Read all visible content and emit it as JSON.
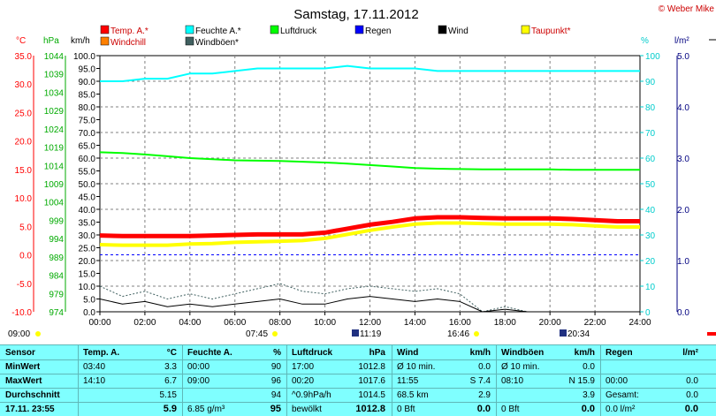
{
  "header": {
    "title": "Samstag, 17.11.2012",
    "copyright": "© Weber Mike"
  },
  "axes": {
    "temp_unit": "°C",
    "pressure_unit": "hPa",
    "wind_unit": "km/h",
    "humidity_unit": "%",
    "rain_unit": "l/m²",
    "temp_ticks": [
      "35.0",
      "30.0",
      "25.0",
      "20.0",
      "15.0",
      "10.0",
      "5.0",
      "0.0",
      "-5.0",
      "-10.0"
    ],
    "pressure_ticks": [
      "1044",
      "1039",
      "1034",
      "1029",
      "1024",
      "1019",
      "1014",
      "1009",
      "1004",
      "999",
      "994",
      "989",
      "984",
      "979",
      "974"
    ],
    "wind_ticks": [
      "100.0",
      "95.0",
      "90.0",
      "85.0",
      "80.0",
      "75.0",
      "70.0",
      "65.0",
      "60.0",
      "55.0",
      "50.0",
      "45.0",
      "40.0",
      "35.0",
      "30.0",
      "25.0",
      "20.0",
      "15.0",
      "10.0",
      "5.0",
      "0.0"
    ],
    "humidity_ticks": [
      "100",
      "90",
      "80",
      "70",
      "60",
      "50",
      "40",
      "30",
      "20",
      "10",
      "0"
    ],
    "rain_ticks": [
      "5.0",
      "4.0",
      "3.0",
      "2.0",
      "1.0",
      "0.0"
    ],
    "time_ticks": [
      "00:00",
      "02:00",
      "04:00",
      "06:00",
      "08:00",
      "10:00",
      "12:00",
      "14:00",
      "16:00",
      "18:00",
      "20:00",
      "22:00",
      "24:00"
    ]
  },
  "legend": [
    {
      "label": "Temp. A.*",
      "color": "#ff0000"
    },
    {
      "label": "Feuchte A.*",
      "color": "#00ffff"
    },
    {
      "label": "Luftdruck",
      "color": "#00ff00"
    },
    {
      "label": "Regen",
      "color": "#0000ff"
    },
    {
      "label": "Wind",
      "color": "#000000"
    },
    {
      "label": "Taupunkt*",
      "color": "#ffff00"
    },
    {
      "label": "Windchill",
      "color": "#ff8000"
    },
    {
      "label": "Windböen*",
      "color": "#406060"
    }
  ],
  "sun_moon": {
    "left_label": "09:00",
    "sunrise": "07:45",
    "moon1": "11:19",
    "sunset": "16:46",
    "moon2": "20:34"
  },
  "chart_data": {
    "type": "line",
    "title": "Samstag, 17.11.2012",
    "x_range": [
      "00:00",
      "24:00"
    ],
    "x_hours": [
      0,
      1,
      2,
      3,
      4,
      5,
      6,
      7,
      8,
      9,
      10,
      11,
      12,
      13,
      14,
      15,
      16,
      17,
      18,
      19,
      20,
      21,
      22,
      23,
      24
    ],
    "series": [
      {
        "name": "Temp. A.*",
        "axis": "temp",
        "color": "#ff0000",
        "values": [
          3.4,
          3.3,
          3.3,
          3.3,
          3.3,
          3.4,
          3.5,
          3.6,
          3.6,
          3.6,
          3.9,
          4.6,
          5.3,
          5.8,
          6.4,
          6.6,
          6.6,
          6.5,
          6.4,
          6.4,
          6.4,
          6.3,
          6.1,
          5.9,
          5.9
        ]
      },
      {
        "name": "Taupunkt*",
        "axis": "temp",
        "color": "#ffff00",
        "values": [
          1.8,
          1.7,
          1.7,
          1.7,
          1.9,
          2.0,
          2.2,
          2.3,
          2.4,
          2.5,
          2.9,
          3.6,
          4.3,
          4.9,
          5.4,
          5.6,
          5.6,
          5.5,
          5.4,
          5.4,
          5.4,
          5.3,
          5.1,
          4.9,
          4.9
        ]
      },
      {
        "name": "Feuchte A.*",
        "axis": "humidity",
        "color": "#00ffff",
        "values": [
          90,
          90,
          91,
          91,
          93,
          93,
          94,
          95,
          95,
          95,
          95,
          96,
          95,
          95,
          95,
          94,
          94,
          94,
          94,
          94,
          94,
          94,
          94,
          94,
          94
        ]
      },
      {
        "name": "Luftdruck",
        "axis": "pressure",
        "color": "#00ff00",
        "values": [
          1017.6,
          1017.4,
          1017.0,
          1016.5,
          1016.0,
          1015.7,
          1015.4,
          1015.3,
          1015.2,
          1015.0,
          1014.8,
          1014.5,
          1014.1,
          1013.7,
          1013.3,
          1013.1,
          1013.0,
          1012.9,
          1012.9,
          1012.9,
          1012.9,
          1012.8,
          1012.8,
          1012.8,
          1012.8
        ]
      },
      {
        "name": "Wind",
        "axis": "wind",
        "color": "#000000",
        "values": [
          5,
          3,
          4,
          2,
          3,
          2,
          3,
          4,
          5,
          3,
          3,
          5,
          6,
          5,
          4,
          5,
          4,
          0,
          1,
          0,
          0,
          0,
          0,
          0,
          0
        ]
      },
      {
        "name": "Windböen*",
        "axis": "wind",
        "color": "#406060",
        "values": [
          10,
          6,
          8,
          5,
          7,
          5,
          7,
          9,
          11,
          8,
          7,
          9,
          10,
          9,
          8,
          9,
          7,
          0,
          2,
          0,
          0,
          0,
          0,
          0,
          0
        ]
      }
    ],
    "ranges": {
      "temp": [
        -10,
        35
      ],
      "pressure": [
        974,
        1044
      ],
      "wind": [
        0,
        100
      ],
      "humidity": [
        0,
        100
      ],
      "rain": [
        0,
        5
      ]
    },
    "reference_line_temp": 0.0,
    "grid": true
  },
  "stats": {
    "headers": {
      "sensor": "Sensor",
      "temp": "Temp. A.",
      "temp_unit": "°C",
      "hum": "Feuchte A.",
      "hum_unit": "%",
      "press": "Luftdruck",
      "press_unit": "hPa",
      "wind": "Wind",
      "wind_unit": "km/h",
      "gust": "Windböen",
      "gust_unit": "km/h",
      "rain": "Regen",
      "rain_unit": "l/m²"
    },
    "rows": [
      {
        "label": "MinWert",
        "temp_time": "03:40",
        "temp_val": "3.3",
        "hum_time": "00:00",
        "hum_val": "90",
        "press_time": "17:00",
        "press_val": "1012.8",
        "wind_time": "Ø 10 min.",
        "wind_val": "0.0",
        "gust_time": "Ø 10 min.",
        "gust_val": "0.0",
        "rain_time": "",
        "rain_val": ""
      },
      {
        "label": "MaxWert",
        "temp_time": "14:10",
        "temp_val": "6.7",
        "hum_time": "09:00",
        "hum_val": "96",
        "press_time": "00:20",
        "press_val": "1017.6",
        "wind_time": "11:55",
        "wind_val": "S 7.4",
        "gust_time": "08:10",
        "gust_val": "N 15.9",
        "rain_time": "00:00",
        "rain_val": "0.0"
      },
      {
        "label": "Durchschnitt",
        "temp_time": "",
        "temp_val": "5.15",
        "hum_time": "",
        "hum_val": "94",
        "press_time": "^0.9hPa/h",
        "press_val": "1014.5",
        "wind_time": "68.5 km",
        "wind_val": "2.9",
        "gust_time": "",
        "gust_val": "3.9",
        "rain_time": "Gesamt:",
        "rain_val": "0.0"
      },
      {
        "label": "17.11. 23:55",
        "temp_time": "",
        "temp_val": "5.9",
        "hum_time": "6.85 g/m³",
        "hum_val": "95",
        "press_time": "bewölkt",
        "press_val": "1012.8",
        "wind_time": "0 Bft",
        "wind_val": "0.0",
        "gust_time": "0 Bft",
        "gust_val": "0.0",
        "rain_time": "0.0 l/m²",
        "rain_val": "0.0"
      }
    ]
  }
}
